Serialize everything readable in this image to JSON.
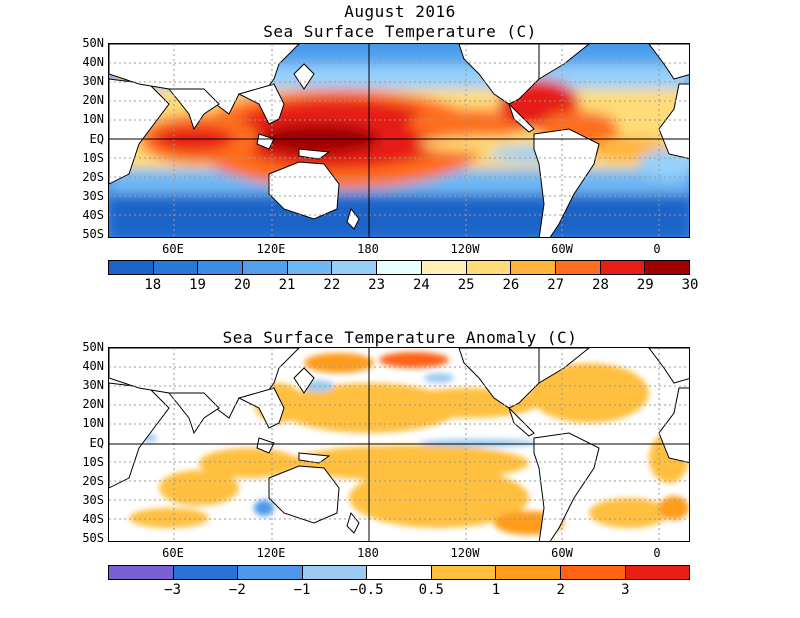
{
  "header": {
    "title": "August 2016",
    "panel1_title": "Sea Surface Temperature (C)",
    "panel2_title": "Sea Surface Temperature Anomaly (C)"
  },
  "latitude_labels": [
    "50N",
    "40N",
    "30N",
    "20N",
    "10N",
    "EQ",
    "10S",
    "20S",
    "30S",
    "40S",
    "50S"
  ],
  "longitude_labels": [
    "60E",
    "120E",
    "180",
    "120W",
    "60W",
    "0"
  ],
  "sst_colorbar": {
    "colors": [
      "#1a64c8",
      "#2878d8",
      "#3c8ce6",
      "#50a0ee",
      "#6eb8f4",
      "#96d0fa",
      "#e6ffff",
      "#fff0b4",
      "#ffdc78",
      "#ffb43c",
      "#ff6e1e",
      "#e61e14",
      "#a00000"
    ],
    "labels": [
      "18",
      "19",
      "20",
      "21",
      "22",
      "23",
      "24",
      "25",
      "26",
      "27",
      "28",
      "29",
      "30"
    ]
  },
  "anomaly_colorbar": {
    "colors": [
      "#7860d2",
      "#2a72d8",
      "#4c98ea",
      "#9ccaf2",
      "#ffffff",
      "#ffc040",
      "#ff9c1e",
      "#ff6414",
      "#e61e14"
    ],
    "labels": [
      "−3",
      "−2",
      "−1",
      "−0.5",
      "0.5",
      "1",
      "2",
      "3"
    ]
  },
  "colors": {
    "land": "#ffffff",
    "coast": "#000000",
    "grid": "#9a9a9a"
  }
}
